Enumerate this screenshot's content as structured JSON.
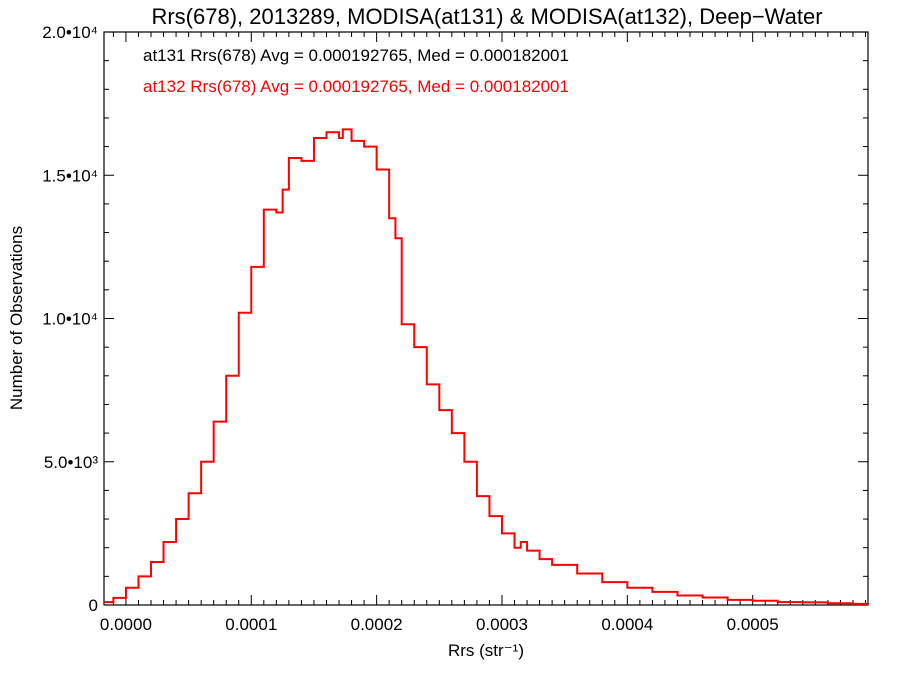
{
  "chart_data": {
    "type": "line",
    "title": "Rrs(678), 2013289, MODISA(at131) & MODISA(at132), Deep−Water",
    "xlabel": "Rrs (str⁻¹)",
    "ylabel": "Number of Observations",
    "xlim": [
      -1.75e-05,
      0.000592
    ],
    "ylim": [
      0,
      20000
    ],
    "x_ticks": [
      {
        "value": 0.0,
        "label": "0.0000"
      },
      {
        "value": 0.0001,
        "label": "0.0001"
      },
      {
        "value": 0.0002,
        "label": "0.0002"
      },
      {
        "value": 0.0003,
        "label": "0.0003"
      },
      {
        "value": 0.0004,
        "label": "0.0004"
      },
      {
        "value": 0.0005,
        "label": "0.0005"
      }
    ],
    "y_ticks": [
      {
        "value": 0,
        "label": "0"
      },
      {
        "value": 5000,
        "label": "5.0•10³"
      },
      {
        "value": 10000,
        "label": "1.0•10⁴"
      },
      {
        "value": 15000,
        "label": "1.5•10⁴"
      },
      {
        "value": 20000,
        "label": "2.0•10⁴"
      }
    ],
    "legend": [
      {
        "text": "at131 Rrs(678) Avg = 0.000192765, Med = 0.000182001",
        "color": "#000000"
      },
      {
        "text": "at132 Rrs(678) Avg = 0.000192765, Med = 0.000182001",
        "color": "#ff0000"
      }
    ],
    "grid": false,
    "series": [
      {
        "color": "#ff0000",
        "style": "step",
        "x": [
          -1.75e-05,
          -1e-05,
          0.0,
          1e-05,
          2e-05,
          3e-05,
          4e-05,
          5e-05,
          6e-05,
          7e-05,
          8e-05,
          9e-05,
          0.0001,
          0.00011,
          0.00012,
          0.000125,
          0.00013,
          0.00014,
          0.00015,
          0.00016,
          0.00017,
          0.000173,
          0.00018,
          0.00019,
          0.0002,
          0.00021,
          0.000215,
          0.00022,
          0.00023,
          0.00024,
          0.00025,
          0.00026,
          0.00027,
          0.00028,
          0.00029,
          0.0003,
          0.00031,
          0.000315,
          0.00032,
          0.00033,
          0.00034,
          0.00036,
          0.00038,
          0.0004,
          0.00042,
          0.00044,
          0.00046,
          0.00048,
          0.0005,
          0.00052,
          0.00054,
          0.00056,
          0.00058,
          0.000592
        ],
        "values": [
          100,
          250,
          600,
          1000,
          1500,
          2200,
          3000,
          3900,
          5000,
          6400,
          8000,
          10200,
          11800,
          13800,
          13700,
          14500,
          15600,
          15500,
          16300,
          16500,
          16300,
          16600,
          16200,
          16000,
          15200,
          13500,
          12800,
          9800,
          9000,
          7700,
          6800,
          6000,
          5000,
          3800,
          3100,
          2500,
          2000,
          2200,
          1900,
          1600,
          1400,
          1100,
          800,
          600,
          460,
          330,
          260,
          180,
          150,
          100,
          90,
          60,
          40,
          30
        ]
      }
    ]
  }
}
